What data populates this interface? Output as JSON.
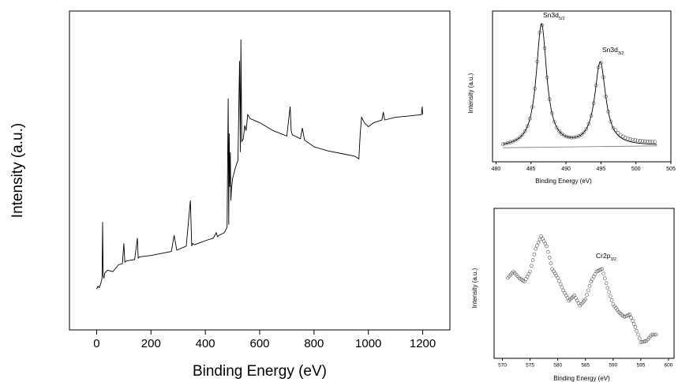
{
  "chart_data": [
    {
      "type": "line",
      "title": "",
      "xlabel": "Binding Energy (eV)",
      "ylabel": "Intensity (a.u.)",
      "xlim": [
        -100,
        1300
      ],
      "ylim": [
        0,
        100
      ],
      "xticks": [
        0,
        200,
        400,
        600,
        800,
        1000,
        1200
      ],
      "xtick_labels": [
        "0",
        "200",
        "400",
        "600",
        "800",
        "1000",
        "1200"
      ],
      "yticks_shown": false,
      "series": [
        {
          "x": [
            0,
            5,
            10,
            15,
            20,
            22,
            24,
            27,
            30,
            40,
            60,
            80,
            95,
            100,
            104,
            110,
            140,
            150,
            153,
            158,
            200,
            250,
            275,
            285,
            295,
            330,
            345,
            348,
            350,
            353,
            360,
            400,
            430,
            440,
            445,
            450,
            470,
            480,
            484,
            486,
            488,
            490,
            492,
            494,
            496,
            500,
            510,
            520,
            526,
            529,
            531,
            534,
            540,
            545,
            550,
            556,
            565,
            600,
            650,
            700,
            712,
            716,
            720,
            750,
            757,
            765,
            800,
            850,
            900,
            950,
            965,
            970,
            975,
            985,
            1000,
            1020,
            1050,
            1055,
            1060,
            1100,
            1150,
            1195,
            1198,
            1200
          ],
          "y": [
            7,
            8,
            7.5,
            9,
            11,
            32,
            12,
            11,
            13,
            14,
            13.5,
            16,
            16.5,
            24,
            17,
            17.5,
            18,
            26,
            18.5,
            19,
            19.5,
            20.5,
            21,
            27,
            21.5,
            23,
            40,
            30,
            23,
            24,
            23.5,
            25,
            26,
            28,
            26.5,
            27,
            28,
            30,
            78,
            31,
            65,
            45,
            58,
            40,
            44,
            48,
            52,
            55,
            92,
            58,
            100,
            62,
            63,
            68,
            66,
            72,
            70.5,
            69,
            66,
            64,
            75,
            66,
            64.5,
            63,
            67,
            62.5,
            60,
            58.5,
            57.5,
            56.5,
            55.5,
            65,
            71,
            69,
            67.5,
            69,
            70,
            73,
            70,
            71,
            71.5,
            72,
            75,
            72
          ]
        }
      ]
    },
    {
      "type": "scatter",
      "title": "",
      "xlabel": "Binding Energy (eV)",
      "ylabel": "Intensity (a.u.)",
      "xlim": [
        479.5,
        505
      ],
      "ylim": [
        0,
        100
      ],
      "xticks": [
        480,
        485,
        490,
        495,
        500,
        505
      ],
      "xtick_labels": [
        "480",
        "485",
        "490",
        "495",
        "500",
        "505"
      ],
      "annotations": [
        {
          "text": "Sn3d",
          "subscript": "5/2",
          "x": 486.5,
          "y": 103
        },
        {
          "text": "Sn3d",
          "subscript": "3/2",
          "x": 495,
          "y": 75
        }
      ],
      "peaks": [
        {
          "center": 486.5,
          "height": 97,
          "width": 0.9
        },
        {
          "center": 494.9,
          "height": 66,
          "width": 0.95
        }
      ],
      "baseline": {
        "x": [
          481,
          503
        ],
        "y": [
          0.5,
          2
        ]
      }
    },
    {
      "type": "scatter",
      "title": "",
      "xlabel": "Binding Energy (eV)",
      "ylabel": "Intensity (a.u.)",
      "xlim": [
        568.5,
        601
      ],
      "ylim": [
        0,
        100
      ],
      "xticks": [
        570,
        575,
        580,
        585,
        590,
        595,
        600
      ],
      "xtick_labels": [
        "570",
        "575",
        "580",
        "585",
        "590",
        "595",
        "600"
      ],
      "annotations": [
        {
          "text": "Cr2p",
          "subscript": "3/2",
          "x": 587.5,
          "y": 65
        }
      ],
      "series": [
        {
          "x": [
            571,
            572,
            573,
            574,
            575,
            576,
            577,
            578,
            579,
            580,
            581,
            582,
            583,
            584,
            585,
            586,
            587,
            588,
            589,
            590,
            591,
            592,
            593,
            594,
            595,
            596,
            597,
            598
          ],
          "y": [
            55,
            60,
            55,
            52,
            60,
            78,
            88,
            80,
            62,
            55,
            45,
            37,
            41,
            33,
            38,
            52,
            60,
            62,
            47,
            34,
            28,
            24,
            26,
            16,
            4,
            5,
            10,
            10
          ]
        }
      ]
    }
  ]
}
